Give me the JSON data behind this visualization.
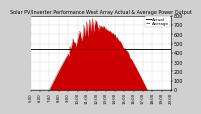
{
  "title": "Solar PV/Inverter Performance West Array Actual & Average Power Output",
  "bg_color": "#d0d0d0",
  "plot_bg_color": "#ffffff",
  "grid_color": "#888888",
  "bar_color": "#cc0000",
  "avg_line_color": "#0000dd",
  "avg_line2_color": "#ff2222",
  "ylim": [
    0,
    800
  ],
  "yticks": [
    0,
    100,
    200,
    300,
    400,
    500,
    600,
    700,
    800
  ],
  "ylabel_fontsize": 3.5,
  "xlabel_fontsize": 2.8,
  "title_fontsize": 3.5,
  "legend_fontsize": 3.0,
  "n_points": 144,
  "time_labels": [
    "5:00",
    "6:00",
    "7:00",
    "8:00",
    "9:00",
    "10:00",
    "11:00",
    "12:00",
    "13:00",
    "14:00",
    "15:00",
    "16:00",
    "17:00",
    "18:00",
    "19:00",
    "20:00"
  ]
}
